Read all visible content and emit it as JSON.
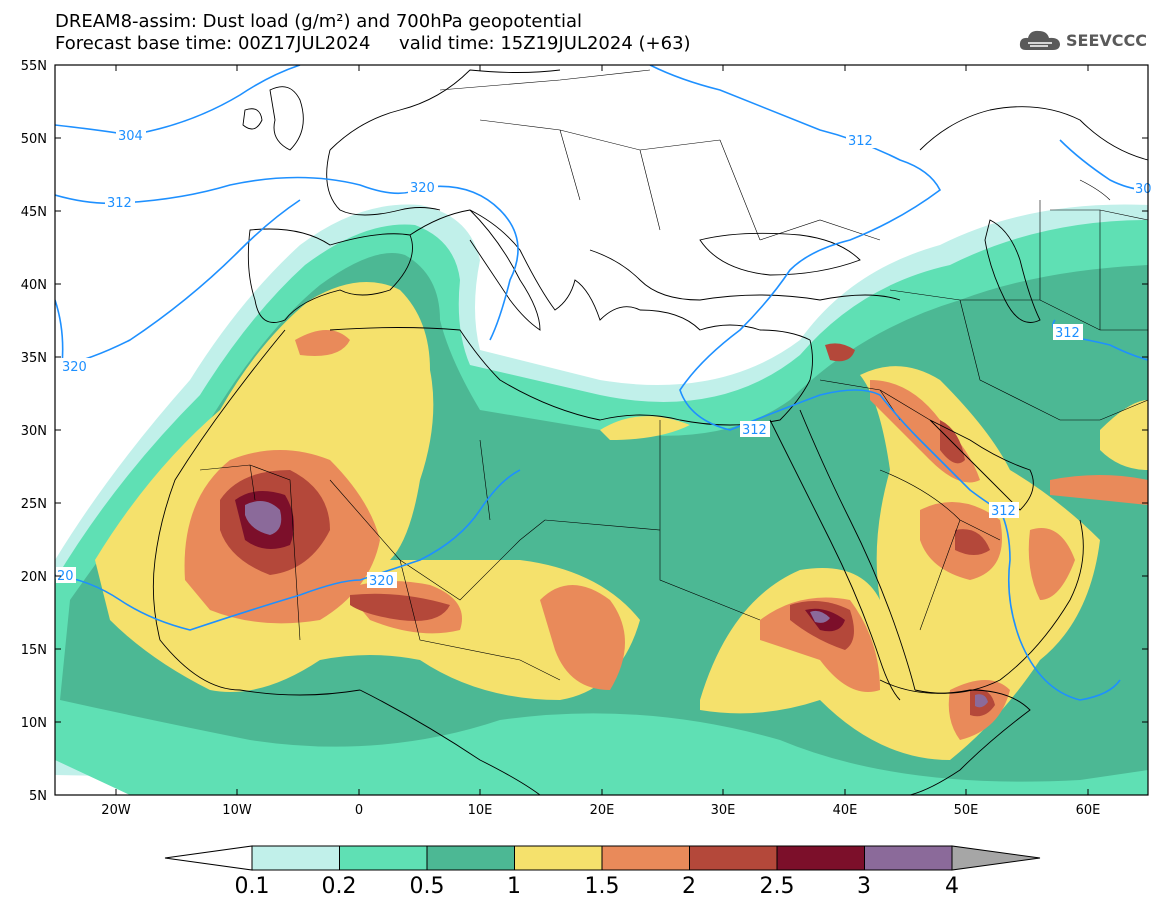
{
  "header": {
    "title_line1": "DREAM8-assim: Dust load (g/m²) and 700hPa geopotential",
    "title_line2": "Forecast base time: 00Z17JUL2024     valid time: 15Z19JUL2024 (+63)"
  },
  "logo": {
    "text": "SEEVCCC",
    "icon": "cloud-logo-icon"
  },
  "map": {
    "lat_labels": [
      "55N",
      "50N",
      "45N",
      "40N",
      "35N",
      "30N",
      "25N",
      "20N",
      "15N",
      "10N",
      "5N"
    ],
    "lon_labels": [
      "20W",
      "10W",
      "0",
      "10E",
      "20E",
      "30E",
      "40E",
      "50E",
      "60E"
    ],
    "geopotential_labels": [
      "304",
      "312",
      "320",
      "320",
      "312",
      "312",
      "312",
      "312",
      "30",
      "320",
      "20"
    ]
  },
  "colorbar": {
    "labels": [
      "0.1",
      "0.2",
      "0.5",
      "1",
      "1.5",
      "2",
      "2.5",
      "3",
      "4"
    ],
    "colors": [
      "#c1f0ea",
      "#5fe0b4",
      "#4cb894",
      "#f5e16c",
      "#e98a5a",
      "#b4483a",
      "#7c0f2a",
      "#8b6a9a"
    ],
    "overflow_color": "#a6a6a6"
  },
  "colors": {
    "contour_line": "#1e90ff",
    "coast": "#000000"
  }
}
